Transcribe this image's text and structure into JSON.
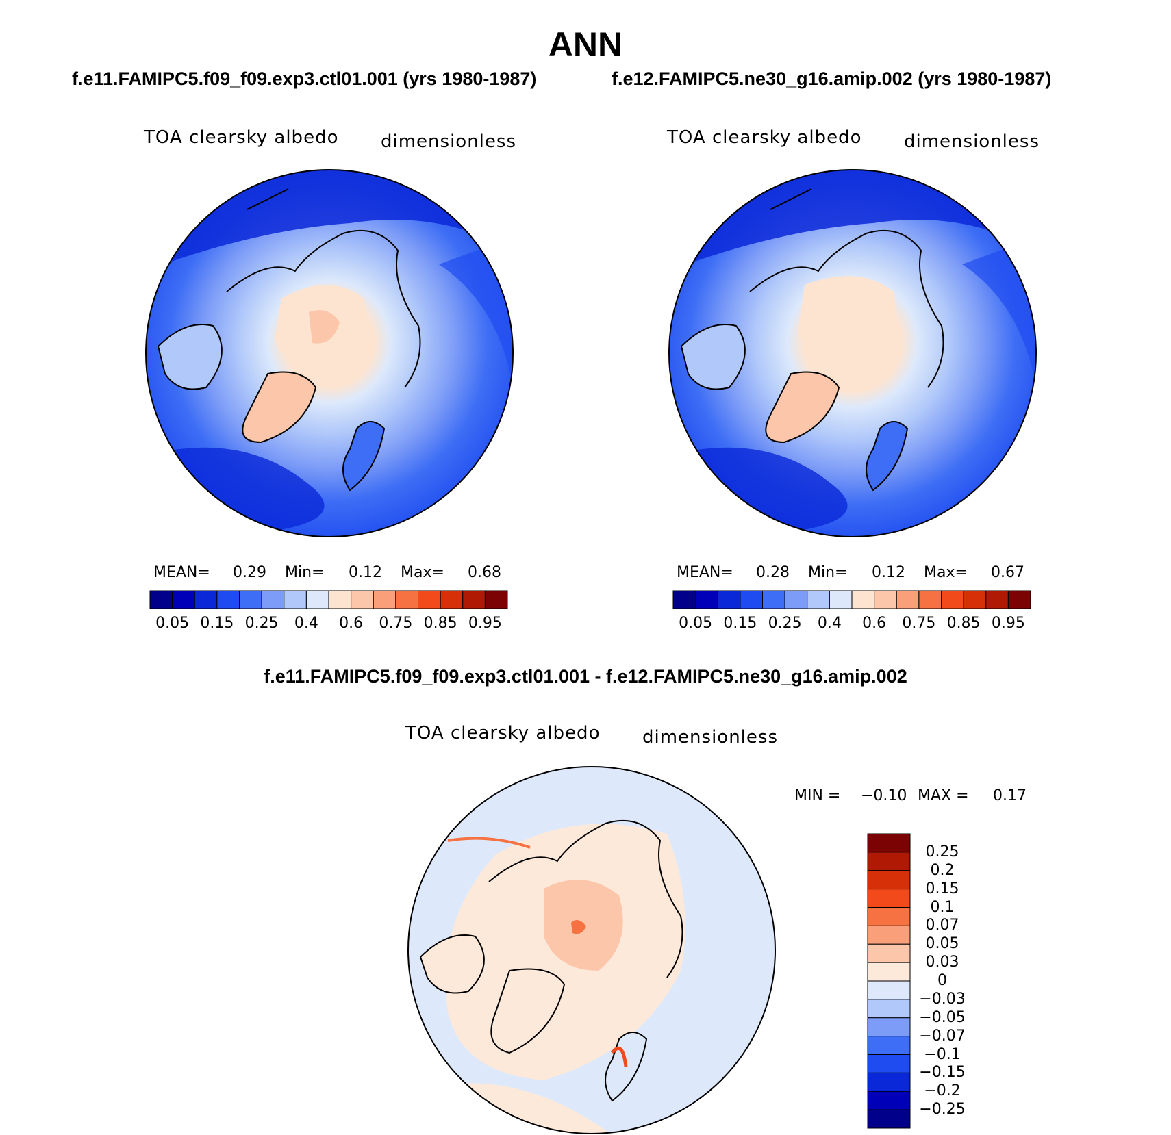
{
  "title": "ANN",
  "panels": [
    {
      "case": "f.e11.FAMIPC5.f09_f09.exp3.ctl01.001 (yrs 1980-1987)",
      "variable": "TOA clearsky albedo",
      "units": "dimensionless",
      "stats": {
        "mean_label": "MEAN=",
        "mean": "0.29",
        "min_label": "Min=",
        "min": "0.12",
        "max_label": "Max=",
        "max": "0.68"
      }
    },
    {
      "case": "f.e12.FAMIPC5.ne30_g16.amip.002 (yrs 1980-1987)",
      "variable": "TOA clearsky albedo",
      "units": "dimensionless",
      "stats": {
        "mean_label": "MEAN=",
        "mean": "0.28",
        "min_label": "Min=",
        "min": "0.12",
        "max_label": "Max=",
        "max": "0.67"
      }
    }
  ],
  "colorbar": {
    "colors": [
      "#00008b",
      "#0000b8",
      "#0a28d8",
      "#1f4cf0",
      "#3e6ef5",
      "#7d9cf7",
      "#b0c8fa",
      "#dde9fb",
      "#fde4d0",
      "#fcc6aa",
      "#f9a07a",
      "#f67242",
      "#f24a1a",
      "#d63008",
      "#b01a05",
      "#7c0303"
    ],
    "labels": [
      "0.05",
      "0.15",
      "0.25",
      "0.4",
      "0.6",
      "0.75",
      "0.85",
      "0.95"
    ]
  },
  "diff": {
    "case": "f.e11.FAMIPC5.f09_f09.exp3.ctl01.001 - f.e12.FAMIPC5.ne30_g16.amip.002",
    "variable": "TOA clearsky albedo",
    "units": "dimensionless",
    "stats": {
      "min_label": "MIN =",
      "min": "−0.10",
      "max_label": "MAX =",
      "max": "0.17"
    },
    "colorbar": {
      "colors": [
        "#7c0303",
        "#b01a05",
        "#d63008",
        "#f24a1a",
        "#f67242",
        "#f9a07a",
        "#fcc6aa",
        "#fde9da",
        "#dde9fb",
        "#b0c8fa",
        "#7d9cf7",
        "#3e6ef5",
        "#1f4cf0",
        "#0a28d8",
        "#0000b8",
        "#00008b"
      ],
      "labels": [
        "0.25",
        "0.2",
        "0.15",
        "0.1",
        "0.07",
        "0.05",
        "0.03",
        "0",
        "−0.03",
        "−0.05",
        "−0.07",
        "−0.1",
        "−0.15",
        "−0.2",
        "−0.25"
      ]
    }
  }
}
